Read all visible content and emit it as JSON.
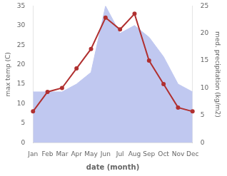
{
  "chart_data": {
    "type": "line",
    "categories": [
      "Jan",
      "Feb",
      "Mar",
      "Apr",
      "May",
      "Jun",
      "Jul",
      "Aug",
      "Sep",
      "Oct",
      "Nov",
      "Dec"
    ],
    "xlabel": "date (month)",
    "ylabel": "max temp (C)",
    "y2label": "med. precipitation (kg/m2)",
    "ylim": [
      0,
      35
    ],
    "yticks": [
      0,
      5,
      10,
      15,
      20,
      25,
      30,
      35
    ],
    "y2lim": [
      0,
      25
    ],
    "y2ticks": [
      0,
      5,
      10,
      15,
      20,
      25
    ],
    "grid": false,
    "series": [
      {
        "type": "area",
        "color": "#c0c8f0",
        "values": [
          13,
          13,
          13,
          15,
          18,
          35,
          28,
          30,
          27,
          22,
          15,
          13
        ]
      },
      {
        "type": "line",
        "color": "#b03030",
        "values": [
          8,
          13,
          14,
          19,
          24,
          32,
          29,
          33,
          21,
          15,
          9,
          8
        ]
      }
    ]
  }
}
